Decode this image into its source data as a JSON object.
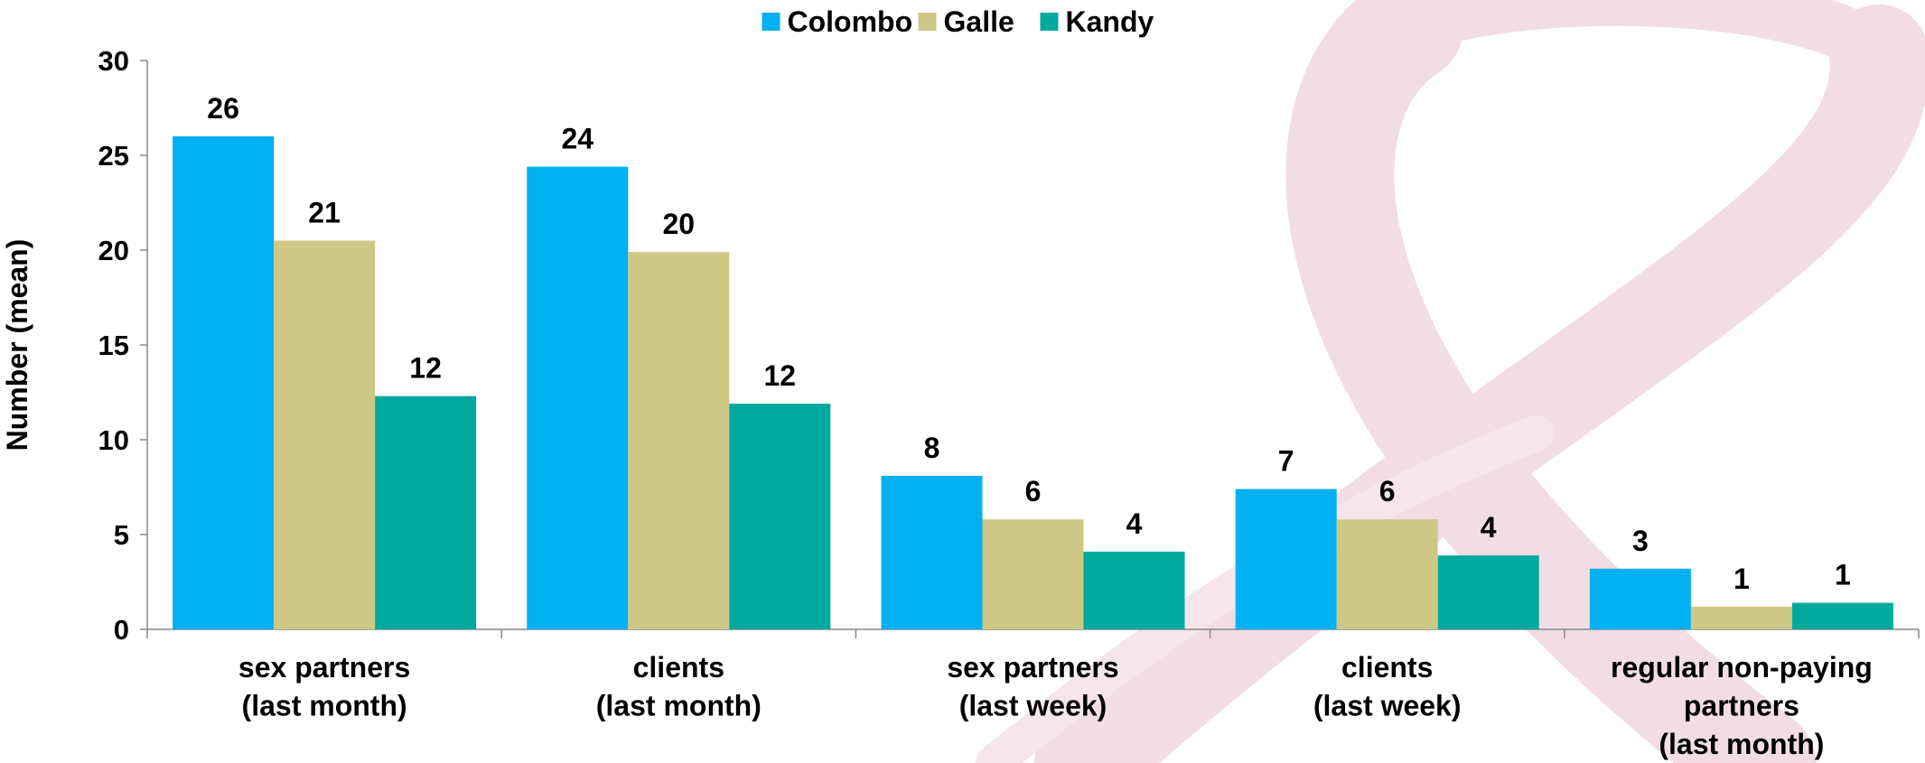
{
  "chart_data": {
    "type": "bar",
    "y_label": "Number (mean)",
    "categories": [
      "sex partners\n(last month)",
      "clients\n(last month)",
      "sex partners\n(last week)",
      "clients\n(last week)",
      "regular non-paying\npartners\n(last month)"
    ],
    "series": [
      {
        "name": "Colombo",
        "color": "#00b0f0",
        "values": [
          26.0,
          24.4,
          8.1,
          7.4,
          3.2
        ],
        "value_labels": [
          "26",
          "24",
          "8",
          "7",
          "3"
        ]
      },
      {
        "name": "Galle",
        "color": "#cdc886",
        "values": [
          20.5,
          19.9,
          5.8,
          5.8,
          1.2
        ],
        "value_labels": [
          "21",
          "20",
          "6",
          "6",
          "1"
        ]
      },
      {
        "name": "Kandy",
        "color": "#00a99d",
        "values": [
          12.3,
          11.9,
          4.1,
          3.9,
          1.4
        ],
        "value_labels": [
          "12",
          "12",
          "4",
          "4",
          "1"
        ]
      }
    ],
    "ylim": [
      0,
      30
    ],
    "yticks": [
      0,
      5,
      10,
      15,
      20,
      25,
      30
    ],
    "grid": false,
    "legend": "top"
  }
}
